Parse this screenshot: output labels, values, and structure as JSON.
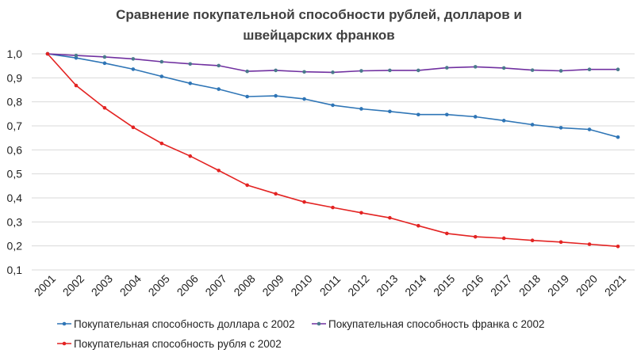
{
  "chart_data": {
    "type": "line",
    "title_lines": [
      "Сравнение покупательной способности рублей, долларов и",
      "швейцарских франков"
    ],
    "xlabel": "",
    "ylabel": "",
    "categories": [
      "2001",
      "2002",
      "2003",
      "2004",
      "2005",
      "2006",
      "2007",
      "2008",
      "2009",
      "2010",
      "2011",
      "2012",
      "2013",
      "2014",
      "2015",
      "2016",
      "2017",
      "2018",
      "2019",
      "2020",
      "2021"
    ],
    "y_ticks": [
      "1,0",
      "0,9",
      "0,8",
      "0,7",
      "0,6",
      "0,5",
      "0,4",
      "0,3",
      "0,2",
      "0,1"
    ],
    "ylim": [
      0.1,
      1.0
    ],
    "grid": "horizontal",
    "legend_position": "bottom",
    "series": [
      {
        "name": "Покупательная способность доллара с 2002",
        "color": "#2e75b6",
        "values": [
          1.0,
          0.983,
          0.961,
          0.936,
          0.906,
          0.877,
          0.853,
          0.822,
          0.825,
          0.812,
          0.786,
          0.771,
          0.76,
          0.747,
          0.747,
          0.738,
          0.722,
          0.705,
          0.692,
          0.685,
          0.653
        ]
      },
      {
        "name": "Покупательная способность франка с 2002",
        "color": "#7030a0",
        "marker_color": "#4a7a8c",
        "values": [
          1.0,
          0.993,
          0.987,
          0.979,
          0.967,
          0.958,
          0.951,
          0.927,
          0.931,
          0.925,
          0.923,
          0.929,
          0.931,
          0.931,
          0.942,
          0.946,
          0.941,
          0.932,
          0.929,
          0.935,
          0.935
        ]
      },
      {
        "name": "Покупательная способность рубля с 2002",
        "color": "#e32322",
        "values": [
          1.0,
          0.868,
          0.775,
          0.694,
          0.627,
          0.574,
          0.514,
          0.453,
          0.417,
          0.383,
          0.36,
          0.338,
          0.317,
          0.284,
          0.252,
          0.238,
          0.232,
          0.223,
          0.216,
          0.207,
          0.198
        ]
      }
    ]
  }
}
